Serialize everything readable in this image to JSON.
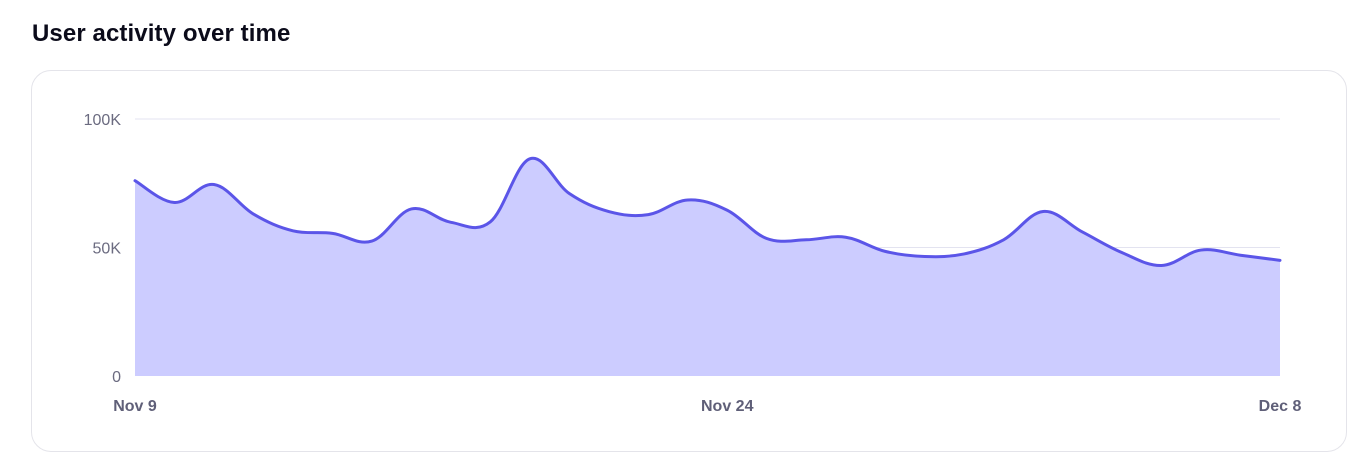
{
  "title": "User activity over time",
  "colors": {
    "line": "#5b55e8",
    "fill": "#ccccff",
    "grid": "#e3e3f0",
    "axis_text": "#6b6b80"
  },
  "chart_data": {
    "type": "area",
    "title": "User activity over time",
    "x_ticks": [
      "Nov 9",
      "Nov 24",
      "Dec 8"
    ],
    "y_ticks": [
      "0",
      "50K",
      "100K"
    ],
    "ylim": [
      0,
      100000
    ],
    "xlabel": "",
    "ylabel": "",
    "grid": true,
    "series": [
      {
        "dates": [
          "Nov 9",
          "Nov 10",
          "Nov 11",
          "Nov 12",
          "Nov 13",
          "Nov 14",
          "Nov 15",
          "Nov 16",
          "Nov 17",
          "Nov 18",
          "Nov 19",
          "Nov 20",
          "Nov 21",
          "Nov 22",
          "Nov 23",
          "Nov 24",
          "Nov 25",
          "Nov 26",
          "Nov 27",
          "Nov 28",
          "Nov 29",
          "Nov 30",
          "Dec 1",
          "Dec 2",
          "Dec 3",
          "Dec 4",
          "Dec 5",
          "Dec 6",
          "Dec 7",
          "Dec 8"
        ],
        "values": [
          76000,
          67500,
          74500,
          63000,
          56500,
          55500,
          52500,
          65000,
          59800,
          60000,
          84500,
          71000,
          64000,
          62800,
          68500,
          64500,
          53500,
          53000,
          54000,
          48500,
          46500,
          47500,
          53000,
          64000,
          56000,
          48000,
          43000,
          49000,
          47000,
          45000
        ]
      }
    ]
  }
}
